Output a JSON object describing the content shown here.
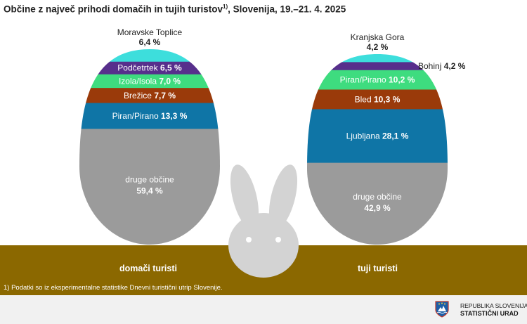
{
  "title": "Občine z največ prihodi domačih in tujih turistov",
  "title_sup": "1)",
  "title_suffix": ", Slovenija, 19.–21. 4. 2025",
  "footnote": "1) Podatki so iz eksperimentalne statistike Dnevni turistični utrip Slovenije.",
  "org": {
    "line1": "REPUBLIKA SLOVENIJA",
    "line2": "STATISTIČNI URAD"
  },
  "colors": {
    "ground": "#8b6800",
    "footer_bg": "#f1f1f1",
    "bunny": "#d3d3d3",
    "segments": [
      "#3ddedc",
      "#572f8c",
      "#3edc7f",
      "#9a3a0a",
      "#0f75a6",
      "#9b9b9b"
    ]
  },
  "chart_data": [
    {
      "type": "stacked-egg",
      "category": "domači turisti",
      "segments": [
        {
          "name": "Moravske Toplice",
          "value": 6.4,
          "label": "6,4 %"
        },
        {
          "name": "Podčetrtek",
          "value": 6.5,
          "label": "6,5 %"
        },
        {
          "name": "Izola/Isola",
          "value": 7.0,
          "label": "7,0 %"
        },
        {
          "name": "Brežice",
          "value": 7.7,
          "label": "7,7 %"
        },
        {
          "name": "Piran/Pirano",
          "value": 13.3,
          "label": "13,3 %"
        },
        {
          "name": "druge občine",
          "value": 59.4,
          "label": "59,4 %"
        }
      ]
    },
    {
      "type": "stacked-egg",
      "category": "tuji turisti",
      "segments": [
        {
          "name": "Kranjska Gora",
          "value": 4.2,
          "label": "4,2 %"
        },
        {
          "name": "Bohinj",
          "value": 4.2,
          "label": "4,2 %"
        },
        {
          "name": "Piran/Pirano",
          "value": 10.2,
          "label": "10,2 %"
        },
        {
          "name": "Bled",
          "value": 10.3,
          "label": "10,3 %"
        },
        {
          "name": "Ljubljana",
          "value": 28.1,
          "label": "28,1 %"
        },
        {
          "name": "druge občine",
          "value": 42.9,
          "label": "42,9 %"
        }
      ]
    }
  ]
}
